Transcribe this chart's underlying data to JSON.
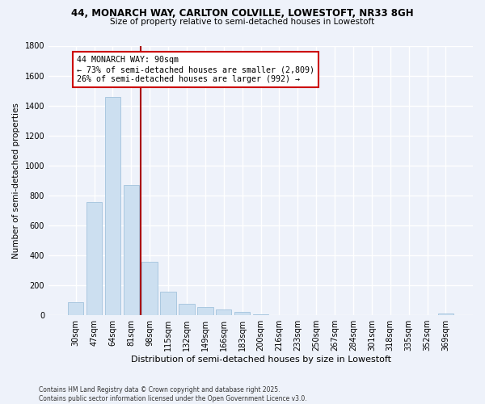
{
  "title1": "44, MONARCH WAY, CARLTON COLVILLE, LOWESTOFT, NR33 8GH",
  "title2": "Size of property relative to semi-detached houses in Lowestoft",
  "xlabel": "Distribution of semi-detached houses by size in Lowestoft",
  "ylabel": "Number of semi-detached properties",
  "categories": [
    "30sqm",
    "47sqm",
    "64sqm",
    "81sqm",
    "98sqm",
    "115sqm",
    "132sqm",
    "149sqm",
    "166sqm",
    "183sqm",
    "200sqm",
    "216sqm",
    "233sqm",
    "250sqm",
    "267sqm",
    "284sqm",
    "301sqm",
    "318sqm",
    "335sqm",
    "352sqm",
    "369sqm"
  ],
  "values": [
    90,
    755,
    1455,
    870,
    355,
    155,
    75,
    55,
    40,
    22,
    5,
    0,
    0,
    0,
    0,
    0,
    0,
    0,
    0,
    0,
    10
  ],
  "annotation_title": "44 MONARCH WAY: 90sqm",
  "annotation_line1": "← 73% of semi-detached houses are smaller (2,809)",
  "annotation_line2": "26% of semi-detached houses are larger (992) →",
  "bar_color": "#ccdff0",
  "bar_edge_color": "#aac8e0",
  "vline_color": "#aa0000",
  "vline_x": 3.5,
  "annotation_box_color": "#cc0000",
  "background_color": "#eef2fa",
  "grid_color": "#ffffff",
  "footer1": "Contains HM Land Registry data © Crown copyright and database right 2025.",
  "footer2": "Contains public sector information licensed under the Open Government Licence v3.0.",
  "ylim": [
    0,
    1800
  ],
  "yticks": [
    0,
    200,
    400,
    600,
    800,
    1000,
    1200,
    1400,
    1600,
    1800
  ]
}
